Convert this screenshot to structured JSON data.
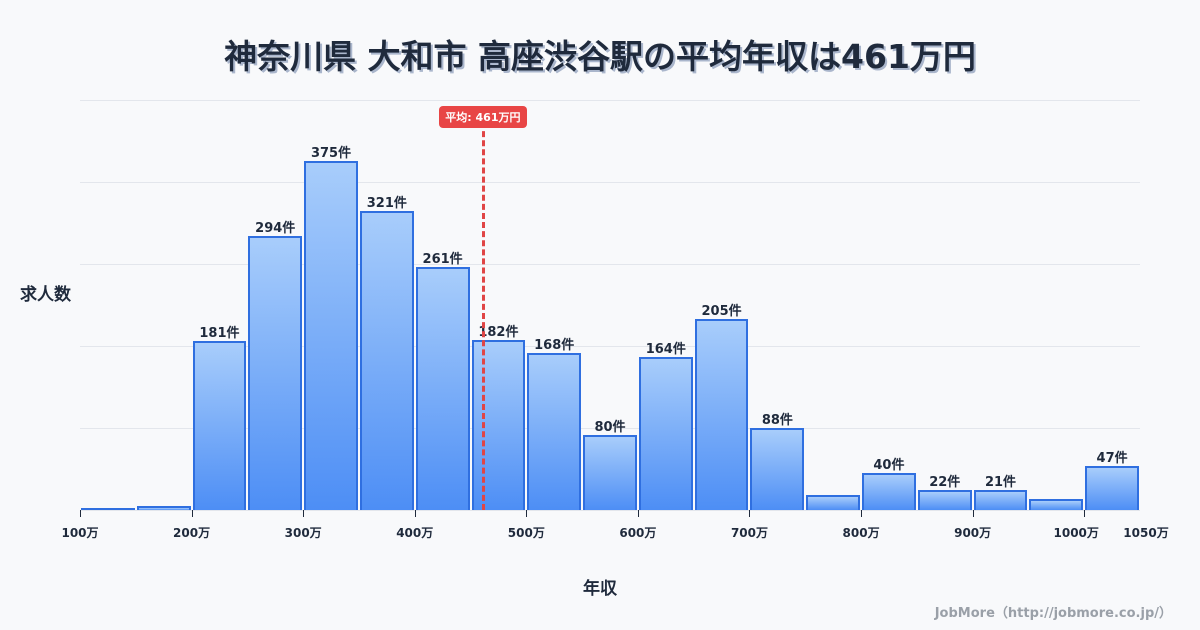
{
  "title": "神奈川県 大和市 高座渋谷駅の平均年収は461万円",
  "ylabel": "求人数",
  "xlabel": "年収",
  "credit": "JobMore（http://jobmore.co.jp/）",
  "mean_label": "平均: 461万円",
  "colors": {
    "bar_fill_top": "#a8cdfb",
    "bar_fill_bottom": "#4d8ef5",
    "bar_border": "#2f6fe0",
    "mean_line": "#e04545",
    "text": "#1f2a3c"
  },
  "chart_data": {
    "type": "bar",
    "title": "神奈川県 大和市 高座渋谷駅の平均年収は461万円",
    "xlabel": "年収",
    "ylabel": "求人数",
    "bin_width": 50,
    "categories": [
      "100-150万",
      "150-200万",
      "200-250万",
      "250-300万",
      "300-350万",
      "350-400万",
      "400-450万",
      "450-500万",
      "500-550万",
      "550-600万",
      "600-650万",
      "650-700万",
      "700-750万",
      "750-800万",
      "800-850万",
      "850-900万",
      "900-950万",
      "950-1000万",
      "1000-1050万"
    ],
    "bin_starts": [
      100,
      150,
      200,
      250,
      300,
      350,
      400,
      450,
      500,
      550,
      600,
      650,
      700,
      750,
      800,
      850,
      900,
      950,
      1000
    ],
    "values": [
      2,
      4,
      181,
      294,
      375,
      321,
      261,
      182,
      168,
      80,
      164,
      205,
      88,
      16,
      40,
      22,
      21,
      12,
      47
    ],
    "value_labels": [
      null,
      null,
      "181件",
      "294件",
      "375件",
      "321件",
      "261件",
      "182件",
      "168件",
      "80件",
      "164件",
      "205件",
      "88件",
      null,
      "40件",
      "22件",
      "21件",
      null,
      "47件"
    ],
    "x_ticks": [
      "100万",
      "200万",
      "300万",
      "400万",
      "500万",
      "600万",
      "700万",
      "800万",
      "900万",
      "1000万",
      "1050万"
    ],
    "x_tick_values": [
      100,
      200,
      300,
      400,
      500,
      600,
      700,
      800,
      900,
      1000,
      1050
    ],
    "xlim": [
      100,
      1050
    ],
    "ylim": [
      0,
      440
    ],
    "mean": 461,
    "mean_annotation": "平均: 461万円",
    "grid": true,
    "legend": null
  }
}
